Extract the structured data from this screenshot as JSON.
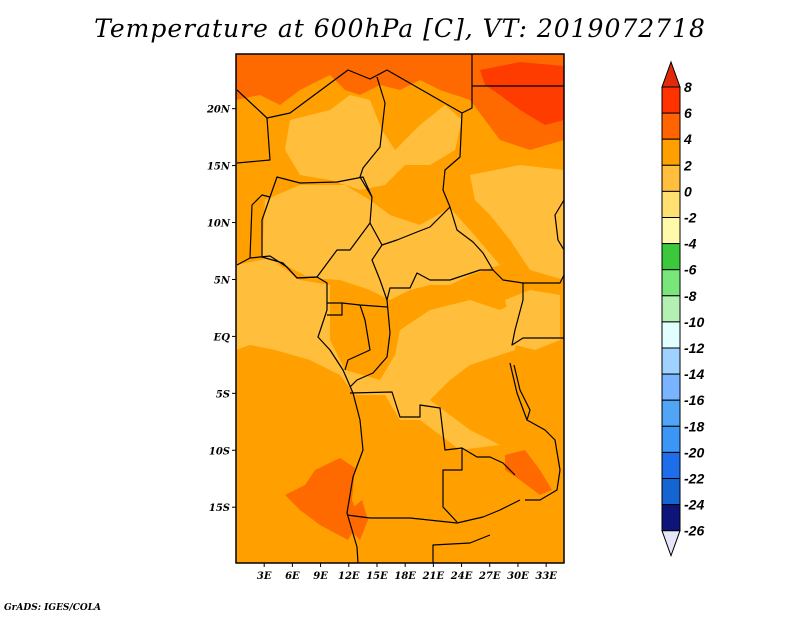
{
  "title": "Temperature at 600hPa [C], VT: 2019072718",
  "credit": "GrADS: IGES/COLA",
  "map": {
    "lat_labels": [
      {
        "text": "20N",
        "lat": 20
      },
      {
        "text": "15N",
        "lat": 15
      },
      {
        "text": "10N",
        "lat": 10
      },
      {
        "text": "5N",
        "lat": 5
      },
      {
        "text": "EQ",
        "lat": 0
      },
      {
        "text": "5S",
        "lat": -5
      },
      {
        "text": "10S",
        "lat": -10
      },
      {
        "text": "15S",
        "lat": -15
      }
    ],
    "lon_labels": [
      {
        "text": "3E",
        "lon": 3
      },
      {
        "text": "6E",
        "lon": 6
      },
      {
        "text": "9E",
        "lon": 9
      },
      {
        "text": "12E",
        "lon": 12
      },
      {
        "text": "15E",
        "lon": 15
      },
      {
        "text": "18E",
        "lon": 18
      },
      {
        "text": "21E",
        "lon": 21
      },
      {
        "text": "24E",
        "lon": 24
      },
      {
        "text": "27E",
        "lon": 27
      },
      {
        "text": "30E",
        "lon": 30
      },
      {
        "text": "33E",
        "lon": 33
      }
    ],
    "lon_range": [
      0,
      34.9
    ],
    "lat_range": [
      -19.9,
      24.8
    ],
    "dominant_color": "#ffa000"
  },
  "colorbar": {
    "levels": [
      "8",
      "6",
      "4",
      "2",
      "0",
      "-2",
      "-4",
      "-6",
      "-8",
      "-10",
      "-12",
      "-14",
      "-16",
      "-18",
      "-20",
      "-22",
      "-24",
      "-26"
    ],
    "top_arrow_color": "#e02a0a",
    "bottom_arrow_color": "#e6e6fa",
    "colors": [
      "#ff3200",
      "#ff6400",
      "#ffa000",
      "#ffbe3c",
      "#ffe070",
      "#fffaaa",
      "#3cc83c",
      "#78e678",
      "#b4f0b4",
      "#e1ffff",
      "#a0d2ff",
      "#78b4ff",
      "#50a5f5",
      "#3c96f5",
      "#1e6eeb",
      "#1464d2",
      "#0f147a"
    ]
  }
}
